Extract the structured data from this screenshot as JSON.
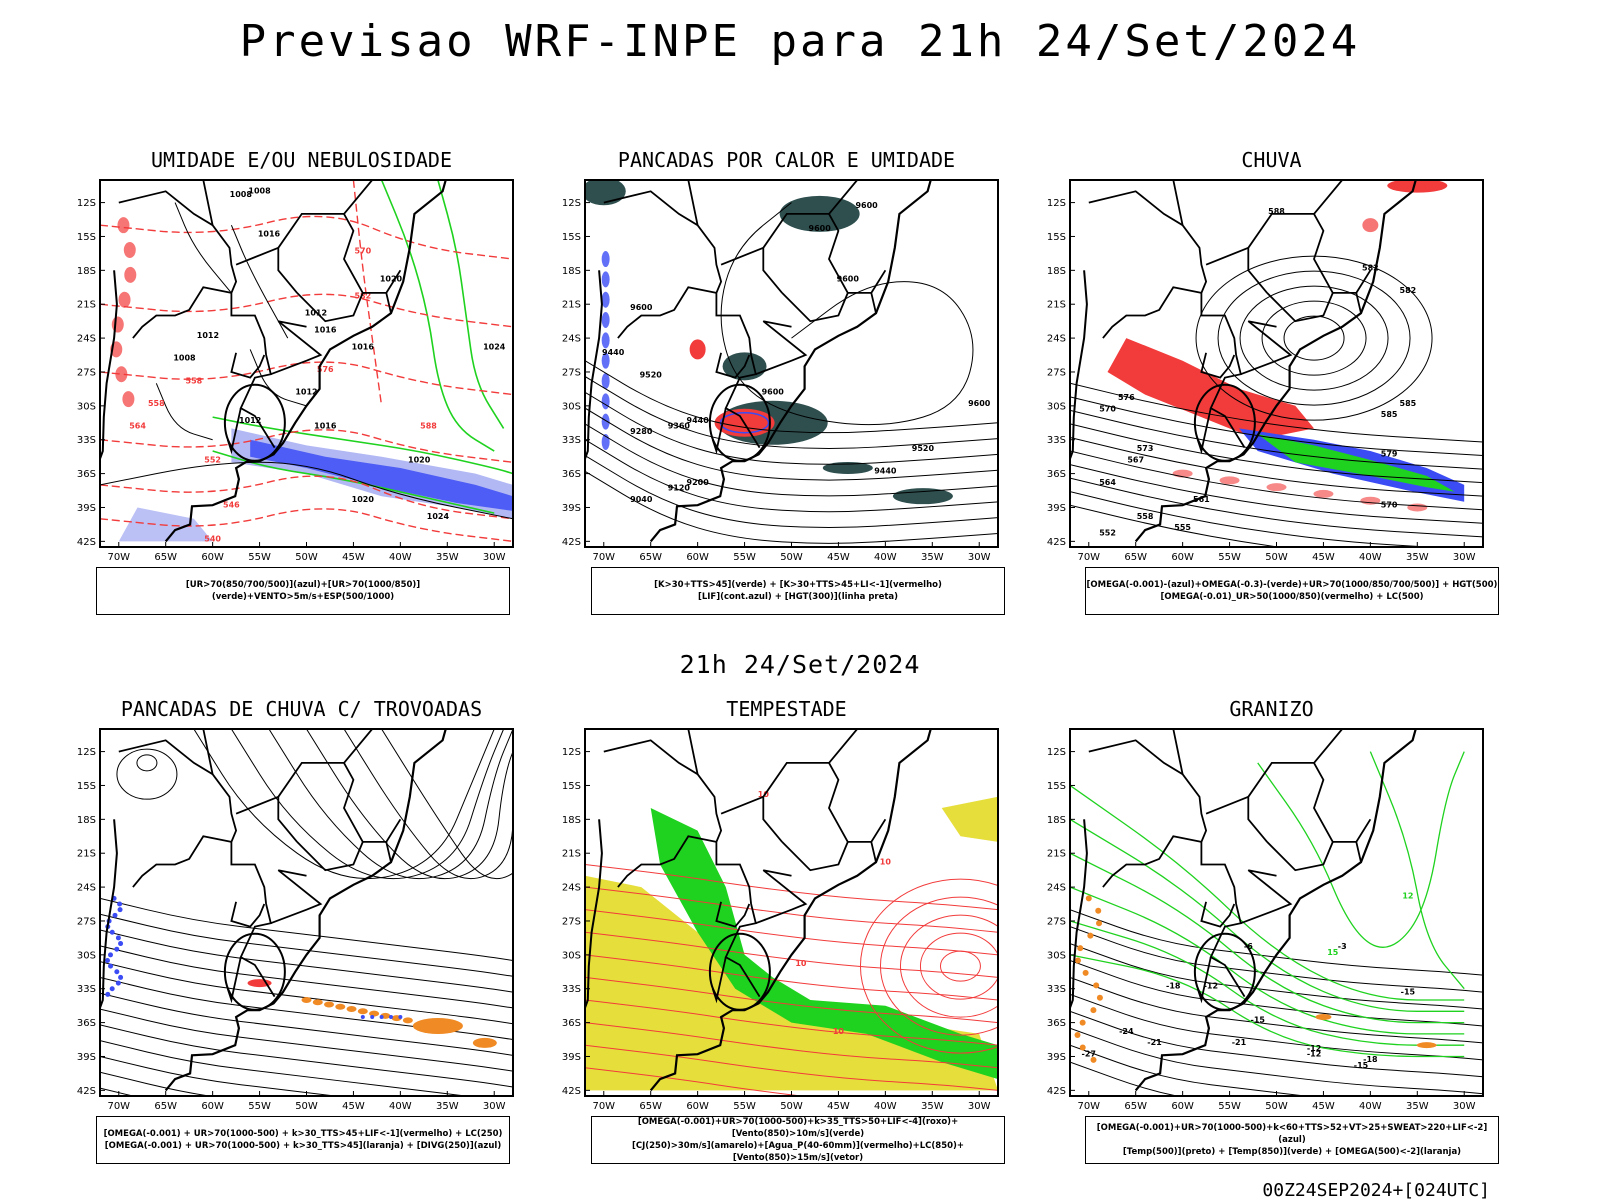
{
  "title": "Previsao WRF-INPE  para 21h 24/Set/2024",
  "mid_date": "21h 24/Set/2024",
  "footer": "00Z24SEP2024+[024UTC]",
  "lat_labels": [
    "12S",
    "15S",
    "18S",
    "21S",
    "24S",
    "27S",
    "30S",
    "33S",
    "36S",
    "39S",
    "42S"
  ],
  "lon_labels": [
    "70W",
    "65W",
    "60W",
    "55W",
    "50W",
    "45W",
    "40W",
    "35W",
    "30W"
  ],
  "colors": {
    "blue": "#3b4cf5",
    "green": "#1fd21f",
    "red": "#f23b3b",
    "orange": "#f08a24",
    "yellow": "#e6de3a",
    "darkteal": "#2f4f4f",
    "lightblue": "#aab0f2"
  },
  "panels": [
    {
      "title": "UMIDADE E/OU NEBULOSIDADE",
      "caption1": "[UR>70(850/700/500)](azul)+[UR>70(1000/850)](verde)+VENTO>5m/s+ESP(500/1000)",
      "caption2": ""
    },
    {
      "title": "PANCADAS POR CALOR E UMIDADE",
      "caption1": "[K>30+TTS>45](verde) + [K>30+TTS>45+LI<-1](vermelho)",
      "caption2": "[LIF](cont.azul) + [HGT(300)](linha preta)"
    },
    {
      "title": "CHUVA",
      "caption1": "[OMEGA(-0.001)-(azul)+OMEGA(-0.3)-(verde)+UR>70(1000/850/700/500)] + HGT(500)",
      "caption2": "[OMEGA(-0.01)_UR>50(1000/850)(vermelho) + LC(500)"
    },
    {
      "title": "PANCADAS DE CHUVA C/ TROVOADAS",
      "caption1": "[OMEGA(-0.001) + UR>70(1000-500) + k>30_TTS>45+LIF<-1](vermelho) + LC(250)",
      "caption2": "[OMEGA(-0.001) + UR>70(1000-500) + k>30_TTS>45](laranja) + [DIVG(250)](azul)"
    },
    {
      "title": "TEMPESTADE",
      "caption1": "[OMEGA(-0.001)+UR>70(1000-500)+k>35_TTS>50+LIF<-4](roxo)+[Vento(850)>10m/s](verde)",
      "caption2": "[CJ(250)>30m/s](amarelo)+[Agua_P(40-60mm)](vermelho)+LC(850)+[Vento(850)>15m/s](vetor)"
    },
    {
      "title": "GRANIZO",
      "caption1": "[OMEGA(-0.001)+UR>70(1000-500)+k<60+TTS>52+VT>25+SWEAT>220+LIF<-2](azul)",
      "caption2": "[Temp(500)](preto) + [Temp(850)](verde) + [OMEGA(500)<-2](laranja)"
    }
  ],
  "contour_labels": {
    "p1": [
      "1008",
      "1008",
      "1016",
      "1020",
      "1012",
      "1012",
      "1016",
      "1016",
      "1008",
      "1012",
      "1012",
      "1016",
      "1020",
      "1020",
      "1024",
      "1024",
      "570",
      "582",
      "576",
      "588",
      "552",
      "546",
      "540",
      "558",
      "564",
      "558"
    ],
    "p2": [
      "9600",
      "9600",
      "9600",
      "9600",
      "9440",
      "9520",
      "9600",
      "9280",
      "9360",
      "9440",
      "9120",
      "9200",
      "9040",
      "9520",
      "9440",
      "9600"
    ],
    "p3": [
      "588",
      "582",
      "585",
      "579",
      "576",
      "573",
      "570",
      "567",
      "564",
      "561",
      "558",
      "555",
      "552",
      "582",
      "585",
      "570"
    ],
    "p5": [
      "10",
      "10",
      "10",
      "10"
    ],
    "p6": [
      "-3",
      "-6",
      "-12",
      "-12",
      "-15",
      "-15",
      "-18",
      "-21",
      "-24",
      "-27",
      "-12",
      "-15",
      "-18",
      "-21",
      "12",
      "15"
    ]
  }
}
